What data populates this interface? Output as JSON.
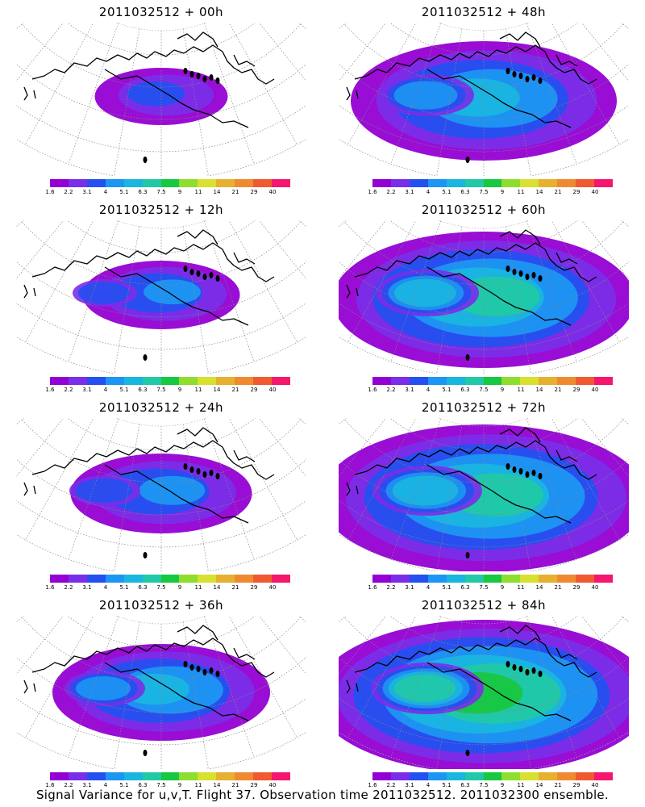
{
  "footer": "Signal Variance for u,v,T. Flight 37. Observation time 2011032512. 2011032300 ensemble.",
  "colorbar": {
    "labels": [
      "1.6",
      "2.2",
      "3.1",
      "4",
      "5.1",
      "6.3",
      "7.5",
      "9",
      "11",
      "14",
      "21",
      "29",
      "40"
    ],
    "colors": [
      "#9400d3",
      "#7a2ee8",
      "#2450f0",
      "#1c96f2",
      "#19b6e0",
      "#21c9a6",
      "#17c840",
      "#8fdd2e",
      "#d8e030",
      "#e6b030",
      "#f08a30",
      "#f05a30",
      "#f5166e"
    ]
  },
  "chart_data": [
    {
      "type": "heatmap",
      "title": "2011032512 + 00h",
      "intensity": 0.18,
      "coverage": 0.15
    },
    {
      "type": "heatmap",
      "title": "2011032512 + 48h",
      "intensity": 0.45,
      "coverage": 0.7
    },
    {
      "type": "heatmap",
      "title": "2011032512 + 12h",
      "intensity": 0.3,
      "coverage": 0.25
    },
    {
      "type": "heatmap",
      "title": "2011032512 + 60h",
      "intensity": 0.55,
      "coverage": 0.85
    },
    {
      "type": "heatmap",
      "title": "2011032512 + 24h",
      "intensity": 0.35,
      "coverage": 0.35
    },
    {
      "type": "heatmap",
      "title": "2011032512 + 72h",
      "intensity": 0.6,
      "coverage": 0.95
    },
    {
      "type": "heatmap",
      "title": "2011032512 + 36h",
      "intensity": 0.45,
      "coverage": 0.5
    },
    {
      "type": "heatmap",
      "title": "2011032512 + 84h",
      "intensity": 0.7,
      "coverage": 1.0
    }
  ]
}
